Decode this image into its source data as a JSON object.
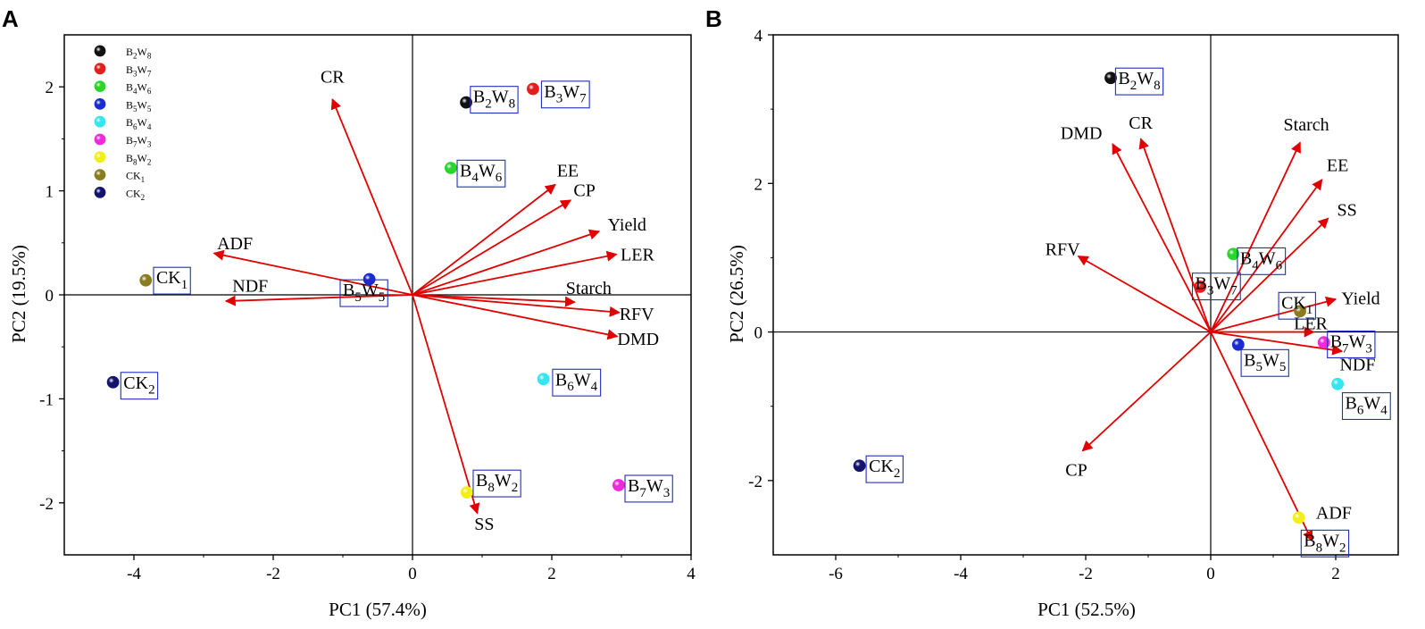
{
  "colors": {
    "arrow": "#e00000",
    "axis": "#000000",
    "label_box": "#1f2fbf",
    "B2W8": "#111111",
    "B3W7": "#e41d1d",
    "B4W6": "#2ad62a",
    "B5W5": "#1a2bd0",
    "B6W4": "#35e6ee",
    "B7W3": "#ee2adb",
    "B8W2": "#f2ee18",
    "CK1": "#8a7d1f",
    "CK2": "#14146e"
  },
  "chart_data": [
    {
      "type": "scatter",
      "subtype": "pca_biplot",
      "panel_label": "A",
      "xlabel": "PC1 (57.4%)",
      "ylabel": "PC2 (19.5%)",
      "xlim": [
        -5,
        4
      ],
      "ylim": [
        -2.5,
        2.5
      ],
      "xticks": [
        -4,
        -2,
        0,
        2,
        4
      ],
      "yticks": [
        -2,
        -1,
        0,
        1,
        2
      ],
      "legend_position": "top-left",
      "legend": [
        {
          "base": "B",
          "s1": "2",
          "mid": "W",
          "s2": "8",
          "color_key": "B2W8"
        },
        {
          "base": "B",
          "s1": "3",
          "mid": "W",
          "s2": "7",
          "color_key": "B3W7"
        },
        {
          "base": "B",
          "s1": "4",
          "mid": "W",
          "s2": "6",
          "color_key": "B4W6"
        },
        {
          "base": "B",
          "s1": "5",
          "mid": "W",
          "s2": "5",
          "color_key": "B5W5"
        },
        {
          "base": "B",
          "s1": "6",
          "mid": "W",
          "s2": "4",
          "color_key": "B6W4"
        },
        {
          "base": "B",
          "s1": "7",
          "mid": "W",
          "s2": "3",
          "color_key": "B7W3"
        },
        {
          "base": "B",
          "s1": "8",
          "mid": "W",
          "s2": "2",
          "color_key": "B8W2"
        },
        {
          "base": "CK",
          "s1": "1",
          "mid": "",
          "s2": "",
          "color_key": "CK1"
        },
        {
          "base": "CK",
          "s1": "2",
          "mid": "",
          "s2": "",
          "color_key": "CK2"
        }
      ],
      "points": [
        {
          "base": "B",
          "s1": "2",
          "mid": "W",
          "s2": "8",
          "x": 0.77,
          "y": 1.85,
          "color_key": "B2W8",
          "label_dx": 0.1,
          "label_dy": 0.06
        },
        {
          "base": "B",
          "s1": "3",
          "mid": "W",
          "s2": "7",
          "x": 1.73,
          "y": 1.98,
          "color_key": "B3W7",
          "label_dx": 0.16,
          "label_dy": -0.02
        },
        {
          "base": "B",
          "s1": "4",
          "mid": "W",
          "s2": "6",
          "x": 0.55,
          "y": 1.22,
          "color_key": "B4W6",
          "label_dx": 0.13,
          "label_dy": -0.02
        },
        {
          "base": "B",
          "s1": "5",
          "mid": "W",
          "s2": "5",
          "x": -0.62,
          "y": 0.15,
          "color_key": "B5W5",
          "label_dx": -0.38,
          "label_dy": -0.1
        },
        {
          "base": "B",
          "s1": "6",
          "mid": "W",
          "s2": "4",
          "x": 1.88,
          "y": -0.81,
          "color_key": "B6W4",
          "label_dx": 0.17,
          "label_dy": 0.0
        },
        {
          "base": "B",
          "s1": "7",
          "mid": "W",
          "s2": "3",
          "x": 2.96,
          "y": -1.83,
          "color_key": "B7W3",
          "label_dx": 0.13,
          "label_dy": 0.0
        },
        {
          "base": "B",
          "s1": "8",
          "mid": "W",
          "s2": "2",
          "x": 0.78,
          "y": -1.9,
          "color_key": "B8W2",
          "label_dx": 0.13,
          "label_dy": 0.12
        },
        {
          "base": "CK",
          "s1": "1",
          "mid": "",
          "s2": "",
          "x": -3.83,
          "y": 0.14,
          "color_key": "CK1",
          "label_dx": 0.15,
          "label_dy": 0.03
        },
        {
          "base": "CK",
          "s1": "2",
          "mid": "",
          "s2": "",
          "x": -4.3,
          "y": -0.84,
          "color_key": "CK2",
          "label_dx": 0.15,
          "label_dy": 0.0
        }
      ],
      "vectors": [
        {
          "name": "CR",
          "x": -1.15,
          "y": 1.88,
          "label_dx": 0.0,
          "label_dy": 0.22
        },
        {
          "name": "ADF",
          "x": -2.85,
          "y": 0.4,
          "label_dx": 0.3,
          "label_dy": 0.1
        },
        {
          "name": "NDF",
          "x": -2.68,
          "y": -0.06,
          "label_dx": 0.35,
          "label_dy": 0.15
        },
        {
          "name": "EE",
          "x": 2.05,
          "y": 1.06,
          "label_dx": 0.18,
          "label_dy": 0.14
        },
        {
          "name": "CP",
          "x": 2.27,
          "y": 0.91,
          "label_dx": 0.2,
          "label_dy": 0.1
        },
        {
          "name": "Yield",
          "x": 2.68,
          "y": 0.61,
          "label_dx": 0.4,
          "label_dy": 0.07
        },
        {
          "name": "LER",
          "x": 2.93,
          "y": 0.39,
          "label_dx": 0.3,
          "label_dy": 0.0
        },
        {
          "name": "Starch",
          "x": 2.33,
          "y": -0.07,
          "label_dx": 0.2,
          "label_dy": 0.14
        },
        {
          "name": "RFV",
          "x": 2.97,
          "y": -0.17,
          "label_dx": 0.25,
          "label_dy": -0.01
        },
        {
          "name": "DMD",
          "x": 2.94,
          "y": -0.4,
          "label_dx": 0.3,
          "label_dy": -0.02
        },
        {
          "name": "SS",
          "x": 0.93,
          "y": -2.1,
          "label_dx": 0.1,
          "label_dy": -0.1
        }
      ]
    },
    {
      "type": "scatter",
      "subtype": "pca_biplot",
      "panel_label": "B",
      "xlabel": "PC1 (52.5%)",
      "ylabel": "PC2 (26.5%)",
      "xlim": [
        -7,
        3
      ],
      "ylim": [
        -3,
        4
      ],
      "xticks": [
        -6,
        -4,
        -2,
        0,
        2
      ],
      "yticks": [
        -2,
        0,
        2,
        4
      ],
      "points": [
        {
          "base": "B",
          "s1": "2",
          "mid": "W",
          "s2": "8",
          "x": -1.6,
          "y": 3.42,
          "color_key": "B2W8",
          "label_dx": 0.12,
          "label_dy": 0.0
        },
        {
          "base": "B",
          "s1": "3",
          "mid": "W",
          "s2": "7",
          "x": -0.17,
          "y": 0.61,
          "color_key": "B3W7",
          "label_dx": -0.08,
          "label_dy": 0.05
        },
        {
          "base": "B",
          "s1": "4",
          "mid": "W",
          "s2": "6",
          "x": 0.36,
          "y": 1.05,
          "color_key": "B4W6",
          "label_dx": 0.11,
          "label_dy": -0.05
        },
        {
          "base": "B",
          "s1": "5",
          "mid": "W",
          "s2": "5",
          "x": 0.44,
          "y": -0.17,
          "color_key": "B5W5",
          "label_dx": 0.09,
          "label_dy": -0.2
        },
        {
          "base": "B",
          "s1": "6",
          "mid": "W",
          "s2": "4",
          "x": 2.03,
          "y": -0.7,
          "color_key": "B6W4",
          "label_dx": 0.12,
          "label_dy": -0.25
        },
        {
          "base": "B",
          "s1": "7",
          "mid": "W",
          "s2": "3",
          "x": 1.81,
          "y": -0.14,
          "color_key": "B7W3",
          "label_dx": 0.1,
          "label_dy": 0.02
        },
        {
          "base": "B",
          "s1": "8",
          "mid": "W",
          "s2": "2",
          "x": 1.41,
          "y": -2.5,
          "color_key": "B8W2",
          "label_dx": 0.08,
          "label_dy": -0.3
        },
        {
          "base": "CK",
          "s1": "1",
          "mid": "",
          "s2": "",
          "x": 1.43,
          "y": 0.28,
          "color_key": "CK1",
          "label_dx": -0.3,
          "label_dy": 0.12
        },
        {
          "base": "CK",
          "s1": "2",
          "mid": "",
          "s2": "",
          "x": -5.62,
          "y": -1.8,
          "color_key": "CK2",
          "label_dx": 0.15,
          "label_dy": 0.0
        }
      ],
      "vectors": [
        {
          "name": "DMD",
          "x": -1.57,
          "y": 2.53,
          "label_dx": -0.5,
          "label_dy": 0.15
        },
        {
          "name": "CR",
          "x": -1.12,
          "y": 2.6,
          "label_dx": 0.0,
          "label_dy": 0.22
        },
        {
          "name": "Starch",
          "x": 1.43,
          "y": 2.55,
          "label_dx": 0.1,
          "label_dy": 0.25
        },
        {
          "name": "EE",
          "x": 1.78,
          "y": 2.05,
          "label_dx": 0.25,
          "label_dy": 0.2
        },
        {
          "name": "SS",
          "x": 1.88,
          "y": 1.53,
          "label_dx": 0.3,
          "label_dy": 0.12
        },
        {
          "name": "RFV",
          "x": -2.12,
          "y": 1.02,
          "label_dx": -0.25,
          "label_dy": 0.1
        },
        {
          "name": "Yield",
          "x": 2.0,
          "y": 0.44,
          "label_dx": 0.4,
          "label_dy": 0.02
        },
        {
          "name": "LER",
          "x": 1.65,
          "y": 0.0,
          "label_dx": -0.05,
          "label_dy": 0.12
        },
        {
          "name": "NDF",
          "x": 2.1,
          "y": -0.26,
          "label_dx": 0.25,
          "label_dy": -0.17
        },
        {
          "name": "CP",
          "x": -2.05,
          "y": -1.6,
          "label_dx": -0.1,
          "label_dy": -0.25
        },
        {
          "name": "ADF",
          "x": 1.62,
          "y": -2.81,
          "label_dx": 0.35,
          "label_dy": 0.38
        }
      ]
    }
  ]
}
